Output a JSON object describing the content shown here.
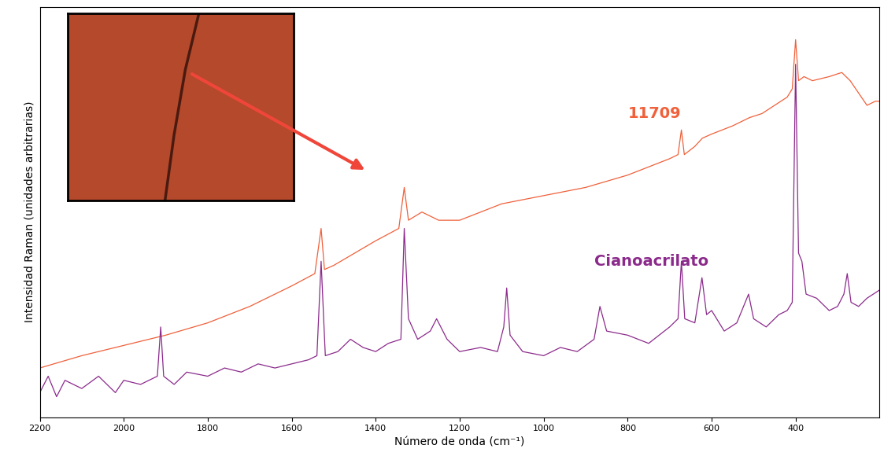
{
  "chart_data": {
    "type": "line",
    "xlabel": "Número de onda (cm⁻¹)",
    "ylabel": "Intensidad Raman (unidades arbitrarias)",
    "xlim": [
      2200,
      200
    ],
    "xticks": [
      2200,
      2000,
      1800,
      1600,
      1400,
      1200,
      1000,
      800,
      600,
      400
    ],
    "ylim": [
      0,
      100
    ],
    "yticks": [],
    "tick_labels": "x",
    "grid": false,
    "series": [
      {
        "name": "11709",
        "color": "#f0603a",
        "x": [
          2200,
          2150,
          2100,
          2000,
          1900,
          1800,
          1700,
          1600,
          1545,
          1530,
          1522,
          1500,
          1450,
          1400,
          1345,
          1332,
          1322,
          1290,
          1250,
          1200,
          1150,
          1100,
          1050,
          1000,
          950,
          900,
          850,
          800,
          750,
          700,
          680,
          672,
          665,
          640,
          622,
          600,
          550,
          510,
          480,
          450,
          420,
          408,
          400,
          393,
          380,
          360,
          320,
          290,
          270,
          250,
          230,
          210,
          200
        ],
        "values": [
          12,
          13.5,
          15,
          17.5,
          20,
          23,
          27,
          32,
          35,
          46,
          36,
          37,
          40,
          43,
          46,
          56,
          48,
          50,
          48,
          48,
          50,
          52,
          53,
          54,
          55,
          56,
          57.5,
          59,
          61,
          63,
          64,
          70,
          64,
          66,
          68,
          69,
          71,
          73,
          74,
          76,
          78,
          80,
          92,
          82,
          83,
          82,
          83,
          84,
          82,
          79,
          76,
          77,
          77
        ]
      },
      {
        "name": "Cianoacrilato",
        "color": "#8b2a8b",
        "x": [
          2200,
          2180,
          2160,
          2140,
          2100,
          2060,
          2020,
          2000,
          1960,
          1920,
          1912,
          1905,
          1880,
          1850,
          1800,
          1760,
          1720,
          1680,
          1640,
          1600,
          1560,
          1540,
          1530,
          1520,
          1490,
          1460,
          1430,
          1400,
          1370,
          1340,
          1332,
          1322,
          1300,
          1270,
          1255,
          1230,
          1200,
          1150,
          1110,
          1095,
          1088,
          1080,
          1050,
          1000,
          960,
          920,
          880,
          866,
          850,
          800,
          750,
          700,
          680,
          672,
          664,
          640,
          623,
          612,
          600,
          570,
          540,
          512,
          500,
          470,
          440,
          420,
          408,
          400,
          393,
          385,
          375,
          350,
          320,
          300,
          285,
          277,
          268,
          250,
          230,
          200
        ],
        "values": [
          6,
          10,
          5,
          9,
          7,
          10,
          6,
          9,
          8,
          10,
          22,
          10,
          8,
          11,
          10,
          12,
          11,
          13,
          12,
          13,
          14,
          15,
          38,
          15,
          16,
          19,
          17,
          16,
          18,
          19,
          46,
          24,
          19,
          21,
          24,
          19,
          16,
          17,
          16,
          22,
          31.5,
          20,
          16,
          15,
          17,
          16,
          19,
          27,
          21,
          20,
          18,
          22,
          24,
          38,
          24,
          23,
          34,
          25,
          26,
          21,
          23,
          30,
          24,
          22,
          25,
          26,
          28,
          86,
          40,
          38,
          30,
          29,
          26,
          27,
          30,
          35,
          28,
          27,
          29,
          31
        ]
      }
    ]
  }
}
